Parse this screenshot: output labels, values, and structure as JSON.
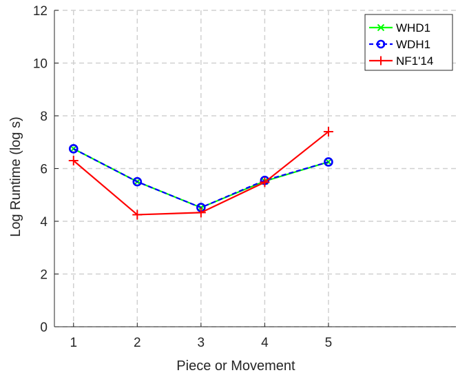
{
  "chart_data": {
    "type": "line",
    "xlabel": "Piece or Movement",
    "ylabel": "Log Runtime (log s)",
    "x": [
      1,
      2,
      3,
      4,
      5
    ],
    "xlim": [
      0.7,
      7.0
    ],
    "ylim": [
      0,
      12
    ],
    "xticks": [
      1,
      2,
      3,
      4,
      5
    ],
    "yticks": [
      0,
      2,
      4,
      6,
      8,
      10,
      12
    ],
    "grid": true,
    "legend_position": "top-right",
    "series": [
      {
        "name": "WHD1",
        "values": [
          6.75,
          5.5,
          4.52,
          5.52,
          6.25
        ],
        "color": "#00ff00",
        "line_style": "solid",
        "marker": "x"
      },
      {
        "name": "WDH1",
        "values": [
          6.75,
          5.5,
          4.52,
          5.55,
          6.25
        ],
        "color": "#0000ff",
        "line_style": "dashed",
        "marker": "circle"
      },
      {
        "name": "NF1'14",
        "values": [
          6.3,
          4.25,
          4.33,
          5.48,
          7.4
        ],
        "color": "#ff0000",
        "line_style": "solid",
        "marker": "plus"
      }
    ]
  }
}
